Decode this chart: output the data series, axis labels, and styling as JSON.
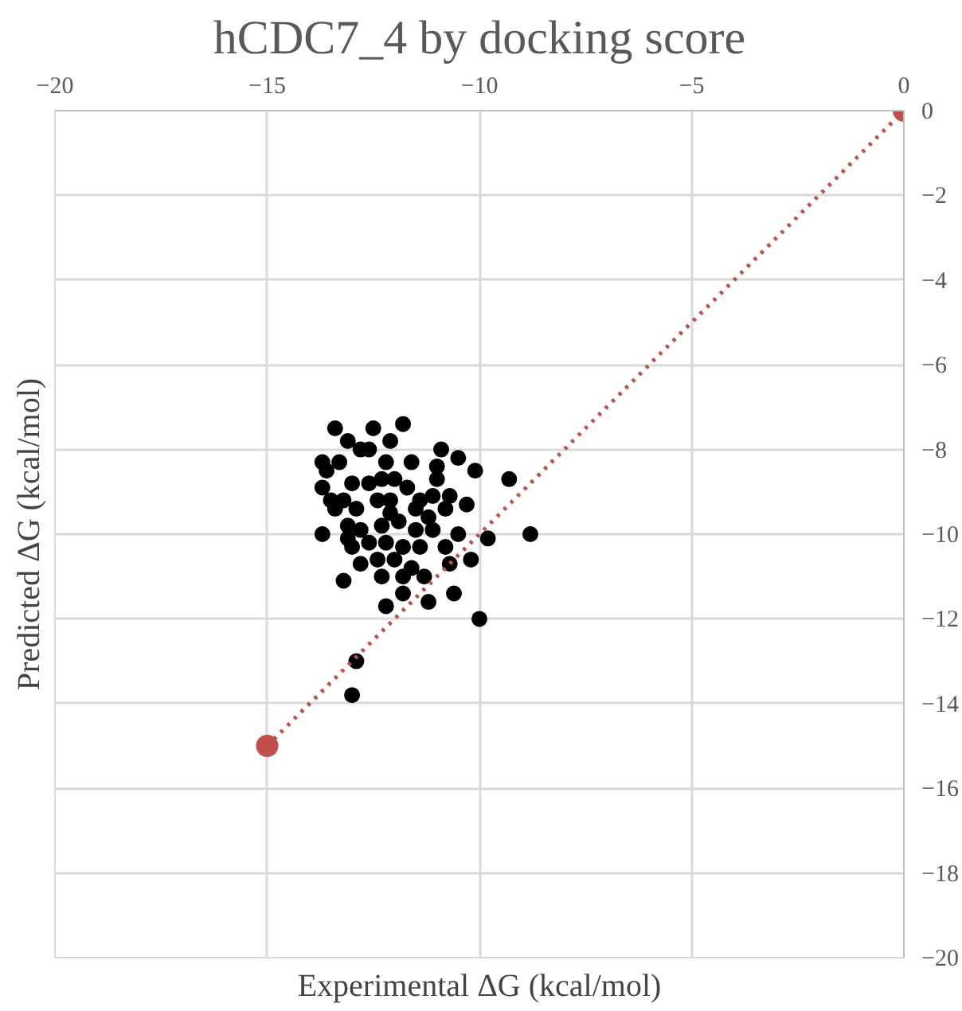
{
  "chart_data": {
    "type": "scatter",
    "title": "hCDC7_4 by docking score",
    "xlabel": "Experimental ΔG (kcal/mol)",
    "ylabel": "Predicted ΔG (kcal/mol)",
    "xlim": [
      -20,
      0
    ],
    "xticks": [
      -20,
      -15,
      -10,
      -5,
      0
    ],
    "ylim": [
      -20,
      0
    ],
    "yticks": [
      -20,
      -18,
      -16,
      -14,
      -12,
      -10,
      -8,
      -6,
      -4,
      -2,
      0
    ],
    "grid": true,
    "marker": "circle",
    "series": [
      {
        "color": "#000000",
        "x": [
          -13.4,
          -12.5,
          -11.8,
          -13.1,
          -12.1,
          -10.9,
          -10.5,
          -11.6,
          -13.7,
          -10.1,
          -9.3,
          -13.7,
          -10.3,
          -8.8,
          -9.8,
          -13.7,
          -10.5,
          -10.2,
          -10.7,
          -13.2,
          -10.6,
          -12.2,
          -11.2,
          -10.0,
          -12.9,
          -13.0,
          -13.6,
          -13.3,
          -12.8,
          -12.6,
          -12.2,
          -12.0,
          -13.0,
          -12.6,
          -12.3,
          -11.7,
          -11.4,
          -11.1,
          -10.7,
          -11.0,
          -13.2,
          -13.4,
          -12.9,
          -12.4,
          -12.1,
          -11.5,
          -11.2,
          -10.8,
          -13.1,
          -12.8,
          -12.3,
          -11.9,
          -11.5,
          -11.1,
          -10.8,
          -13.0,
          -12.6,
          -12.2,
          -11.8,
          -11.4,
          -12.8,
          -12.4,
          -12.0,
          -11.6,
          -12.3,
          -11.8,
          -11.3,
          -11.8,
          -13.1,
          -13.5,
          -11.0,
          -12.1
        ],
        "values": [
          -7.5,
          -7.5,
          -7.4,
          -7.8,
          -7.8,
          -8.0,
          -8.2,
          -8.3,
          -8.3,
          -8.5,
          -8.7,
          -8.9,
          -9.3,
          -10.0,
          -10.1,
          -10.0,
          -10.0,
          -10.6,
          -10.7,
          -11.1,
          -11.4,
          -11.7,
          -11.6,
          -12.0,
          -13.0,
          -13.8,
          -8.5,
          -8.3,
          -8.0,
          -8.0,
          -8.3,
          -8.7,
          -8.8,
          -8.8,
          -8.7,
          -8.9,
          -9.2,
          -9.1,
          -9.1,
          -8.4,
          -9.2,
          -9.4,
          -9.4,
          -9.2,
          -9.2,
          -9.4,
          -9.6,
          -9.4,
          -9.8,
          -9.9,
          -9.8,
          -9.7,
          -9.9,
          -9.9,
          -10.3,
          -10.3,
          -10.2,
          -10.2,
          -10.3,
          -10.3,
          -10.7,
          -10.6,
          -10.6,
          -10.8,
          -11.0,
          -11.0,
          -11.0,
          -11.4,
          -10.1,
          -9.2,
          -8.7,
          -9.5
        ]
      },
      {
        "type": "line",
        "color": "#c0504d",
        "x": [
          -15,
          0
        ],
        "values": [
          -15,
          0
        ],
        "line_style": "dotted",
        "marker": "circle"
      }
    ]
  }
}
